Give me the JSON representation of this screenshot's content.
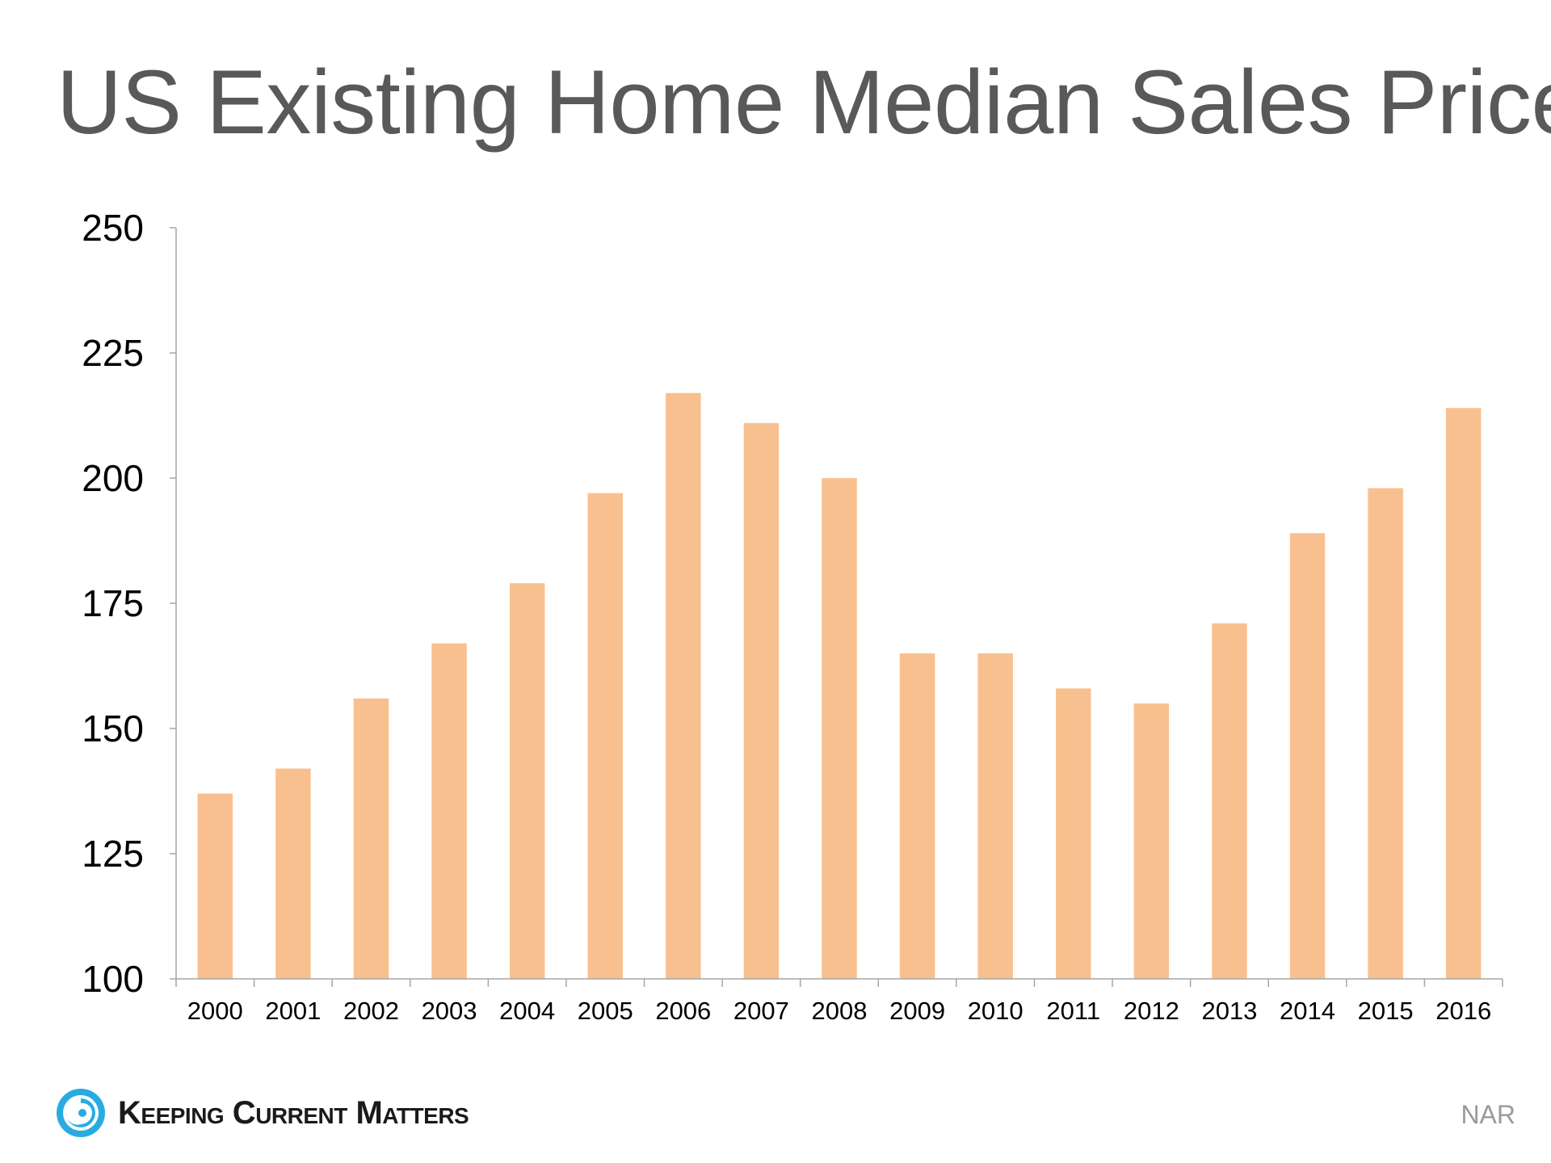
{
  "title": "US Existing Home Median Sales Price",
  "brand": {
    "name": "Keeping Current Matters",
    "logo_icon": "swirl-logo-icon",
    "logo_color": "#29abe2"
  },
  "source": "NAR",
  "colors": {
    "bar": "#f9c08f",
    "axis": "#a6a6a6",
    "title": "#595959",
    "tick_text": "#000000"
  },
  "chart_data": {
    "type": "bar",
    "title": "US Existing Home Median Sales Price",
    "xlabel": "",
    "ylabel": "",
    "categories": [
      "2000",
      "2001",
      "2002",
      "2003",
      "2004",
      "2005",
      "2006",
      "2007",
      "2008",
      "2009",
      "2010",
      "2011",
      "2012",
      "2013",
      "2014",
      "2015",
      "2016"
    ],
    "values": [
      137,
      142,
      156,
      167,
      179,
      197,
      217,
      211,
      200,
      165,
      165,
      158,
      155,
      171,
      189,
      198,
      214
    ],
    "ylim": [
      100,
      250
    ],
    "yticks": [
      100,
      125,
      150,
      175,
      200,
      225,
      250
    ],
    "grid": false,
    "legend": "none"
  }
}
